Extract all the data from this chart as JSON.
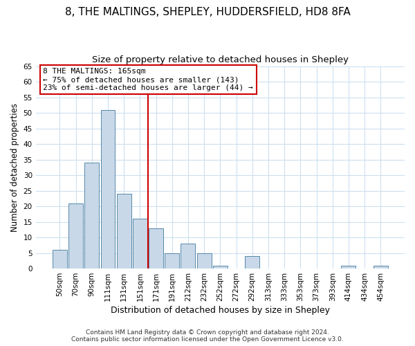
{
  "title": "8, THE MALTINGS, SHEPLEY, HUDDERSFIELD, HD8 8FA",
  "subtitle": "Size of property relative to detached houses in Shepley",
  "xlabel": "Distribution of detached houses by size in Shepley",
  "ylabel": "Number of detached properties",
  "bar_labels": [
    "50sqm",
    "70sqm",
    "90sqm",
    "111sqm",
    "131sqm",
    "151sqm",
    "171sqm",
    "191sqm",
    "212sqm",
    "232sqm",
    "252sqm",
    "272sqm",
    "292sqm",
    "313sqm",
    "333sqm",
    "353sqm",
    "373sqm",
    "393sqm",
    "414sqm",
    "434sqm",
    "454sqm"
  ],
  "bar_values": [
    6,
    21,
    34,
    51,
    24,
    16,
    13,
    5,
    8,
    5,
    1,
    0,
    4,
    0,
    0,
    0,
    0,
    0,
    1,
    0,
    1
  ],
  "bar_color": "#c8d8e8",
  "bar_edge_color": "#5588aa",
  "vline_index": 6,
  "vline_color": "#cc0000",
  "annotation_title": "8 THE MALTINGS: 165sqm",
  "annotation_line1": "← 75% of detached houses are smaller (143)",
  "annotation_line2": "23% of semi-detached houses are larger (44) →",
  "box_color": "#cc0000",
  "ylim": [
    0,
    65
  ],
  "yticks": [
    0,
    5,
    10,
    15,
    20,
    25,
    30,
    35,
    40,
    45,
    50,
    55,
    60,
    65
  ],
  "footer1": "Contains HM Land Registry data © Crown copyright and database right 2024.",
  "footer2": "Contains public sector information licensed under the Open Government Licence v3.0.",
  "title_fontsize": 11,
  "subtitle_fontsize": 9.5,
  "xlabel_fontsize": 9,
  "ylabel_fontsize": 8.5,
  "tick_fontsize": 7.5,
  "footer_fontsize": 6.5,
  "annotation_fontsize": 8
}
